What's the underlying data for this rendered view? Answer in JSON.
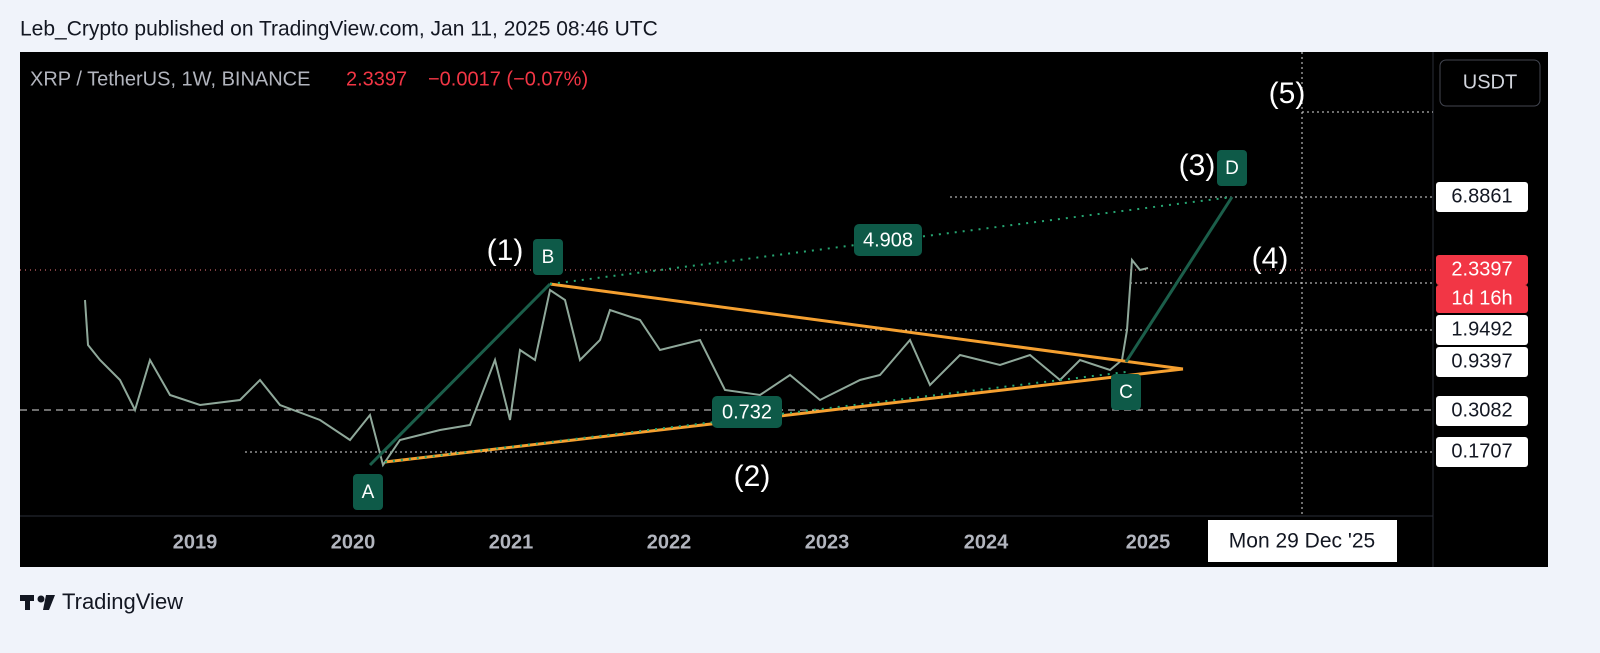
{
  "header": {
    "publisher": "Leb_Crypto published on TradingView.com, Jan 11, 2025 08:46 UTC"
  },
  "symbol": {
    "name": "XRP / TetherUS, 1W, BINANCE",
    "price": "2.3397",
    "change": "−0.0017 (−0.07%)"
  },
  "currency_button": "USDT",
  "price_scale": {
    "labels": [
      "6.8861",
      "2.3397",
      "1.9492",
      "0.9397",
      "0.3082",
      "0.1707"
    ],
    "countdown": "1d 16h"
  },
  "x_axis": {
    "labels": [
      "2019",
      "2020",
      "2021",
      "2022",
      "2023",
      "2024",
      "2025"
    ],
    "cursor_date": "Mon 29 Dec '25"
  },
  "waves": [
    "(1)",
    "(2)",
    "(3)",
    "(4)",
    "(5)"
  ],
  "points": [
    "A",
    "B",
    "C",
    "D"
  ],
  "measures": [
    "4.908",
    "0.732"
  ],
  "footer": {
    "brand": "TradingView"
  }
}
